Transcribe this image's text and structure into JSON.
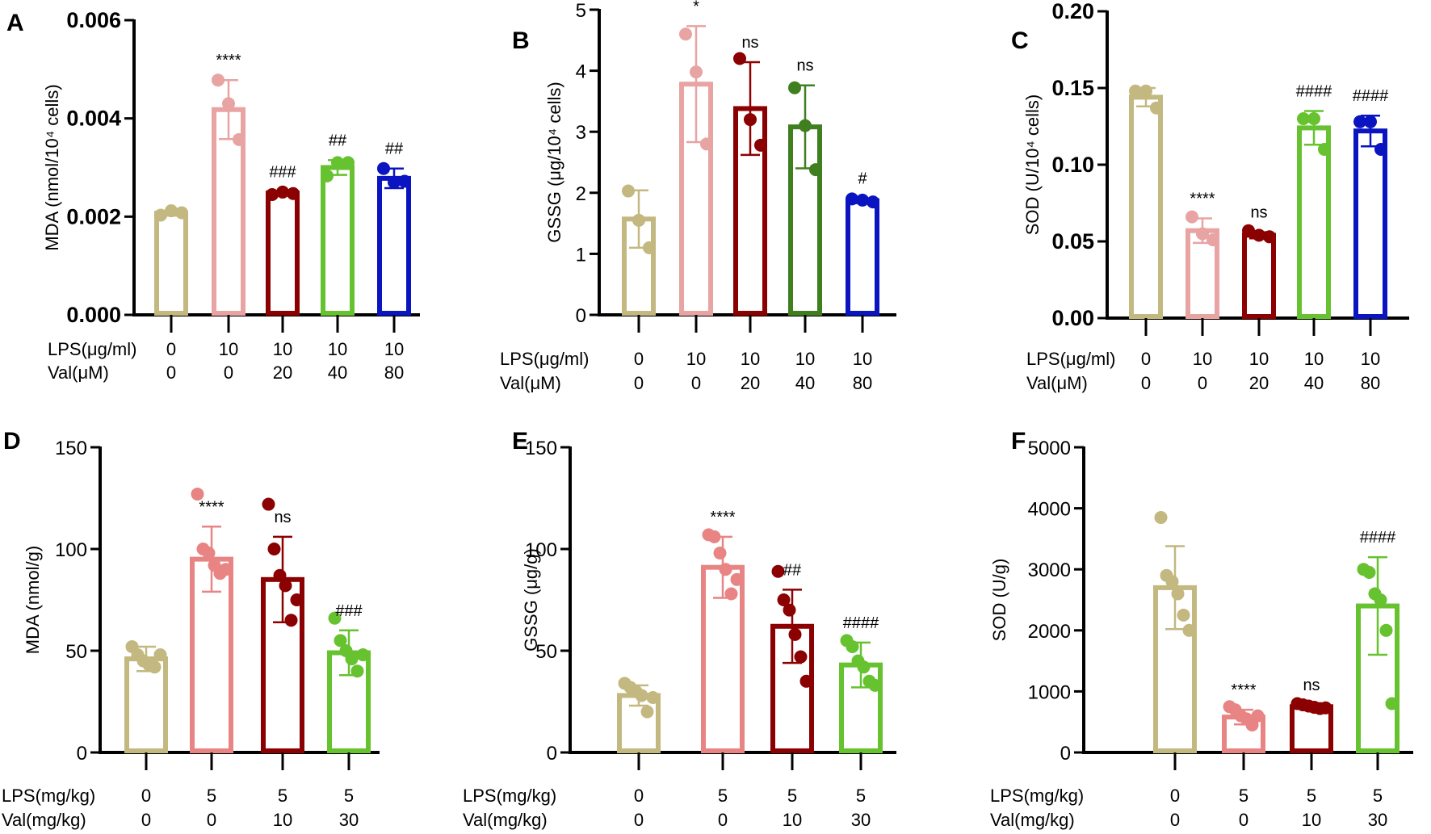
{
  "chart_data": [
    {
      "panel": "A",
      "type": "bar",
      "ylabel": "MDA (nmol/10⁴ cells)",
      "ylim": [
        0,
        0.006
      ],
      "yticks": [
        "0.000",
        "0.002",
        "0.004",
        "0.006"
      ],
      "ytick_values": [
        0,
        0.002,
        0.004,
        0.006
      ],
      "row_labels": [
        "LPS(μg/ml)",
        "Val(μM)"
      ],
      "rows": [
        [
          "0",
          "10",
          "10",
          "10",
          "10"
        ],
        [
          "0",
          "0",
          "20",
          "40",
          "80"
        ]
      ],
      "values": [
        0.00207,
        0.00418,
        0.00248,
        0.003,
        0.00278
      ],
      "errors": [
        5e-05,
        0.0006,
        3e-05,
        0.00015,
        0.0002
      ],
      "points": [
        [
          0.00203,
          0.00212,
          0.00208
        ],
        [
          0.00478,
          0.0043,
          0.00357
        ],
        [
          0.00245,
          0.0025,
          0.00247
        ],
        [
          0.00283,
          0.0031,
          0.0031
        ],
        [
          0.00298,
          0.0027,
          0.00272
        ]
      ],
      "annotations": [
        "",
        "****",
        "###",
        "##",
        "##"
      ],
      "colors": [
        "#c2b880",
        "#e8a3a3",
        "#8b0000",
        "#66c22e",
        "#0a14c0"
      ]
    },
    {
      "panel": "B",
      "type": "bar",
      "ylabel": "GSSG (μg/10⁴ cells)",
      "ylim": [
        0,
        5
      ],
      "yticks": [
        "0",
        "1",
        "2",
        "3",
        "4",
        "5"
      ],
      "ytick_values": [
        0,
        1,
        2,
        3,
        4,
        5
      ],
      "row_labels": [
        "LPS(μg/ml)",
        "Val(μM)"
      ],
      "rows": [
        [
          "0",
          "10",
          "10",
          "10",
          "10"
        ],
        [
          "0",
          "0",
          "20",
          "40",
          "80"
        ]
      ],
      "values": [
        1.57,
        3.78,
        3.38,
        3.08,
        1.87
      ],
      "errors": [
        0.47,
        0.95,
        0.76,
        0.68,
        0.04
      ],
      "points": [
        [
          2.03,
          1.55,
          1.1
        ],
        [
          4.6,
          3.98,
          2.8
        ],
        [
          4.2,
          3.2,
          2.78
        ],
        [
          3.72,
          3.1,
          2.38
        ],
        [
          1.9,
          1.88,
          1.85
        ]
      ],
      "annotations": [
        "",
        "*",
        "ns",
        "ns",
        "#"
      ],
      "colors": [
        "#c2b880",
        "#e8a3a3",
        "#8b0000",
        "#3f7f1f",
        "#0a14c0"
      ]
    },
    {
      "panel": "C",
      "type": "bar",
      "ylabel": "SOD (U/10⁴ cells)",
      "ylim": [
        0,
        0.2
      ],
      "yticks": [
        "0.00",
        "0.05",
        "0.10",
        "0.15",
        "0.20"
      ],
      "ytick_values": [
        0,
        0.05,
        0.1,
        0.15,
        0.2
      ],
      "row_labels": [
        "LPS(μg/ml)",
        "Val(μM)"
      ],
      "rows": [
        [
          "0",
          "10",
          "10",
          "10",
          "10"
        ],
        [
          "0",
          "0",
          "20",
          "40",
          "80"
        ]
      ],
      "values": [
        0.144,
        0.057,
        0.054,
        0.124,
        0.122
      ],
      "errors": [
        0.006,
        0.008,
        0.002,
        0.011,
        0.01
      ],
      "points": [
        [
          0.148,
          0.148,
          0.137
        ],
        [
          0.066,
          0.055,
          0.051
        ],
        [
          0.057,
          0.054,
          0.053
        ],
        [
          0.13,
          0.13,
          0.11
        ],
        [
          0.128,
          0.128,
          0.11
        ]
      ],
      "annotations": [
        "",
        "****",
        "ns",
        "####",
        "####"
      ],
      "colors": [
        "#c2b880",
        "#e8a3a3",
        "#8b0000",
        "#66c22e",
        "#0a14c0"
      ]
    },
    {
      "panel": "D",
      "type": "bar",
      "ylabel": "MDA (nmol/g)",
      "ylim": [
        0,
        150
      ],
      "yticks": [
        "0",
        "50",
        "100",
        "150"
      ],
      "ytick_values": [
        0,
        50,
        100,
        150
      ],
      "row_labels": [
        "LPS(mg/kg)",
        "Val(mg/kg)"
      ],
      "rows": [
        [
          "0",
          "5",
          "5",
          "5"
        ],
        [
          "0",
          "0",
          "10",
          "30"
        ]
      ],
      "values": [
        46,
        95,
        85,
        49
      ],
      "errors": [
        6,
        16,
        21,
        11
      ],
      "points": [
        [
          52,
          48,
          45,
          43,
          42,
          48
        ],
        [
          127,
          100,
          98,
          92,
          88,
          90
        ],
        [
          122,
          100,
          87,
          82,
          65,
          75
        ],
        [
          66,
          55,
          50,
          46,
          40,
          48
        ]
      ],
      "annotations": [
        "",
        "****",
        "ns",
        "###"
      ],
      "colors": [
        "#c2b880",
        "#e88484",
        "#8b0000",
        "#66c22e"
      ]
    },
    {
      "panel": "E",
      "type": "bar",
      "ylabel": "GSSG (μg/g)",
      "ylim": [
        0,
        150
      ],
      "yticks": [
        "0",
        "50",
        "100",
        "150"
      ],
      "ytick_values": [
        0,
        50,
        100,
        150
      ],
      "row_labels": [
        "LPS(mg/kg)",
        "Val(mg/kg)"
      ],
      "rows": [
        [
          "0",
          "5",
          "5",
          "5"
        ],
        [
          "0",
          "0",
          "10",
          "30"
        ]
      ],
      "values": [
        28,
        91,
        62,
        43
      ],
      "errors": [
        5,
        15,
        18,
        11
      ],
      "points": [
        [
          34,
          32,
          30,
          28,
          20,
          27
        ],
        [
          107,
          106,
          98,
          90,
          78,
          85
        ],
        [
          89,
          75,
          70,
          58,
          47,
          35
        ],
        [
          55,
          52,
          45,
          42,
          35,
          33
        ]
      ],
      "annotations": [
        "",
        "****",
        "##",
        "####"
      ],
      "colors": [
        "#c2b880",
        "#e88484",
        "#8b0000",
        "#66c22e"
      ]
    },
    {
      "panel": "F",
      "type": "bar",
      "ylabel": "SOD (U/g)",
      "ylim": [
        0,
        5000
      ],
      "yticks": [
        "0",
        "1000",
        "2000",
        "3000",
        "4000",
        "5000"
      ],
      "ytick_values": [
        0,
        1000,
        2000,
        3000,
        4000,
        5000
      ],
      "row_labels": [
        "LPS(mg/kg)",
        "Val(mg/kg)"
      ],
      "rows": [
        [
          "0",
          "5",
          "5",
          "5"
        ],
        [
          "0",
          "0",
          "10",
          "30"
        ]
      ],
      "values": [
        2700,
        580,
        750,
        2400
      ],
      "errors": [
        680,
        120,
        30,
        800
      ],
      "points": [
        [
          3850,
          2900,
          2800,
          2600,
          2250,
          2000
        ],
        [
          750,
          700,
          600,
          550,
          450,
          600
        ],
        [
          800,
          780,
          760,
          740,
          720,
          730
        ],
        [
          3000,
          2950,
          2600,
          2500,
          2000,
          800
        ]
      ],
      "annotations": [
        "",
        "****",
        "ns",
        "####"
      ],
      "colors": [
        "#c2b880",
        "#e88484",
        "#8b0000",
        "#66c22e"
      ]
    }
  ]
}
